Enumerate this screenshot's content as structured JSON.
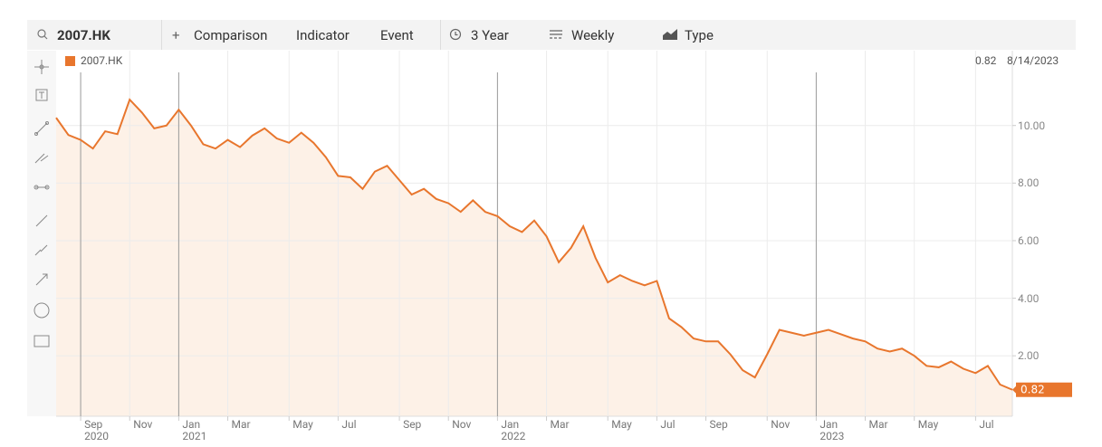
{
  "toolbar": {
    "symbol": "2007.HK",
    "comparison": "Comparison",
    "indicator": "Indicator",
    "event": "Event",
    "range": "3 Year",
    "interval": "Weekly",
    "chart_type": "Type"
  },
  "chart_data": {
    "type": "line",
    "last_value": 0.82,
    "last_date": "8/14/2023",
    "categories": [
      null,
      null,
      "Sep\n2020",
      null,
      null,
      null,
      "Nov",
      null,
      null,
      null,
      "Jan\n2021",
      null,
      null,
      null,
      "Mar",
      null,
      null,
      null,
      null,
      "May",
      null,
      null,
      null,
      "Jul",
      null,
      null,
      null,
      null,
      "Sep",
      null,
      null,
      null,
      "Nov",
      null,
      null,
      null,
      "Jan\n2022",
      null,
      null,
      null,
      "Mar",
      null,
      null,
      null,
      null,
      "May",
      null,
      null,
      null,
      "Jul",
      null,
      null,
      null,
      "Sep",
      null,
      null,
      null,
      null,
      "Nov",
      null,
      null,
      null,
      "Jan\n2023",
      null,
      null,
      null,
      "Mar",
      null,
      null,
      null,
      "May",
      null,
      null,
      null,
      null,
      "Jul",
      null,
      null,
      null
    ],
    "series": [
      {
        "name": "2007.HK",
        "color": "#e8762d",
        "fill": "#fdf1e7",
        "values": [
          10.27,
          9.67,
          9.5,
          9.2,
          9.8,
          9.7,
          10.9,
          10.45,
          9.9,
          10.0,
          10.55,
          10.0,
          9.35,
          9.2,
          9.5,
          9.25,
          9.65,
          9.9,
          9.55,
          9.4,
          9.75,
          9.4,
          8.9,
          8.25,
          8.2,
          7.8,
          8.4,
          8.6,
          8.1,
          7.6,
          7.8,
          7.45,
          7.3,
          7.0,
          7.4,
          7.0,
          6.85,
          6.5,
          6.3,
          6.7,
          6.15,
          5.25,
          5.75,
          6.5,
          5.4,
          4.55,
          4.8,
          4.6,
          4.45,
          4.6,
          3.3,
          3.0,
          2.6,
          2.5,
          2.5,
          2.05,
          1.5,
          1.25,
          2.05,
          2.9,
          2.8,
          2.7,
          2.8,
          2.9,
          2.75,
          2.6,
          2.5,
          2.25,
          2.15,
          2.25,
          2.0,
          1.65,
          1.6,
          1.8,
          1.55,
          1.4,
          1.65,
          1.0,
          0.82
        ]
      }
    ],
    "ylim": [
      -0.1,
      12.6
    ],
    "yticks": [
      {
        "value": 2,
        "label": "2.00"
      },
      {
        "value": 4,
        "label": "4.00"
      },
      {
        "value": 6,
        "label": "6.00"
      },
      {
        "value": 8,
        "label": "8.00"
      },
      {
        "value": 10,
        "label": "10.00"
      }
    ],
    "grid": true
  }
}
